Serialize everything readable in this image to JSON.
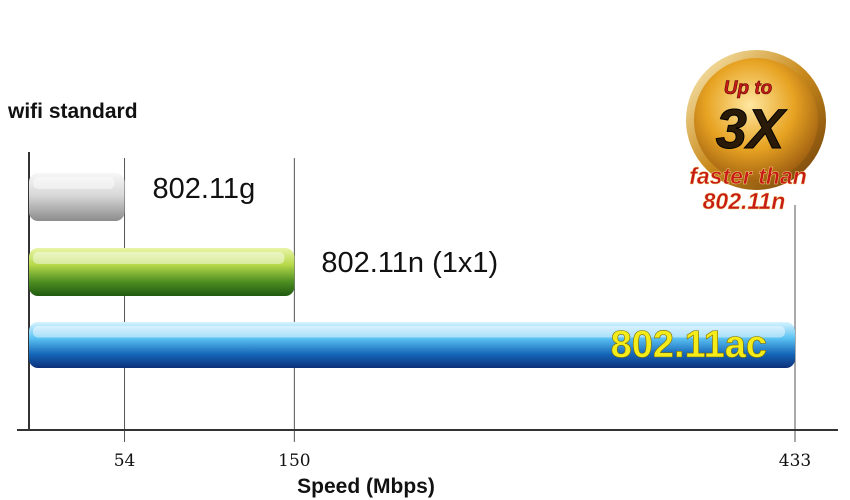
{
  "chart_data": {
    "type": "bar",
    "orientation": "horizontal",
    "title": "wifi standard",
    "xlabel": "Speed (Mbps)",
    "categories": [
      "802.11g",
      "802.11n (1x1)",
      "802.11ac"
    ],
    "values": [
      54,
      150,
      433
    ],
    "x_ticks": [
      "54",
      "150",
      "433"
    ],
    "xlim": [
      0,
      433
    ],
    "grid": true,
    "colors": {
      "bar_802_11g": "#bfbfbf",
      "bar_802_11n": "#5f9a1e",
      "bar_802_11ac": "#2a86cc",
      "ac_label": "#f4ec1a"
    }
  },
  "badge": {
    "line1": "Up to",
    "line2": "3X",
    "line3": "faster than",
    "line4": "802.11n",
    "colors": {
      "gold": "#e7a322",
      "red": "#c81a16"
    }
  }
}
